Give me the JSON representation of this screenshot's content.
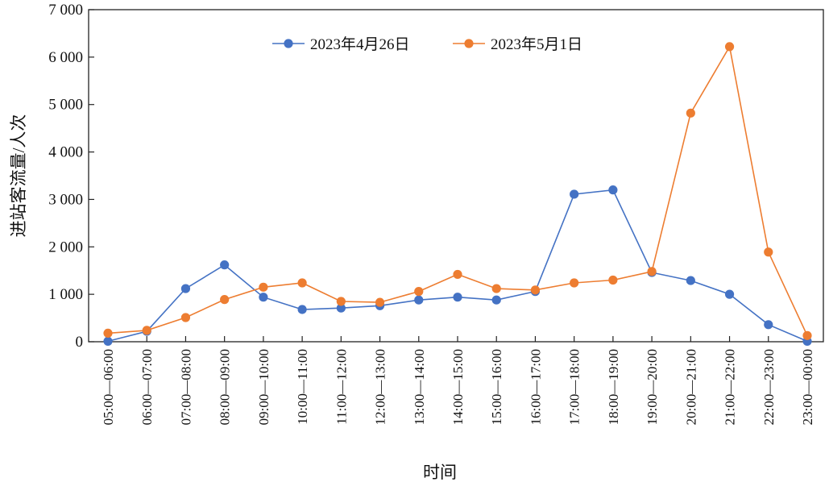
{
  "chart_data": {
    "type": "line",
    "title": "",
    "xlabel": "时间",
    "ylabel": "进站客流量/人次",
    "ylim": [
      0,
      7000
    ],
    "y_ticks": [
      0,
      1000,
      2000,
      3000,
      4000,
      5000,
      6000,
      7000
    ],
    "y_tick_labels": [
      "0",
      "1 000",
      "2 000",
      "3 000",
      "4 000",
      "5 000",
      "6 000",
      "7 000"
    ],
    "categories": [
      "05:00—06:00",
      "06:00—07:00",
      "07:00—08:00",
      "08:00—09:00",
      "09:00—10:00",
      "10:00—11:00",
      "11:00—12:00",
      "12:00—13:00",
      "13:00—14:00",
      "14:00—15:00",
      "15:00—16:00",
      "16:00—17:00",
      "17:00—18:00",
      "18:00—19:00",
      "19:00—20:00",
      "20:00—21:00",
      "21:00—22:00",
      "22:00—23:00",
      "23:00—00:00"
    ],
    "series": [
      {
        "name": "2023年4月26日",
        "color": "#4472C4",
        "values": [
          10,
          220,
          1120,
          1620,
          940,
          680,
          710,
          760,
          880,
          940,
          880,
          1060,
          3110,
          3200,
          1460,
          1290,
          1000,
          360,
          10
        ]
      },
      {
        "name": "2023年5月1日",
        "color": "#ED7D31",
        "values": [
          180,
          240,
          510,
          890,
          1150,
          1240,
          850,
          830,
          1060,
          1420,
          1120,
          1090,
          1240,
          1300,
          1480,
          4820,
          6220,
          1890,
          130
        ]
      }
    ],
    "legend_position": "top",
    "grid": false
  }
}
